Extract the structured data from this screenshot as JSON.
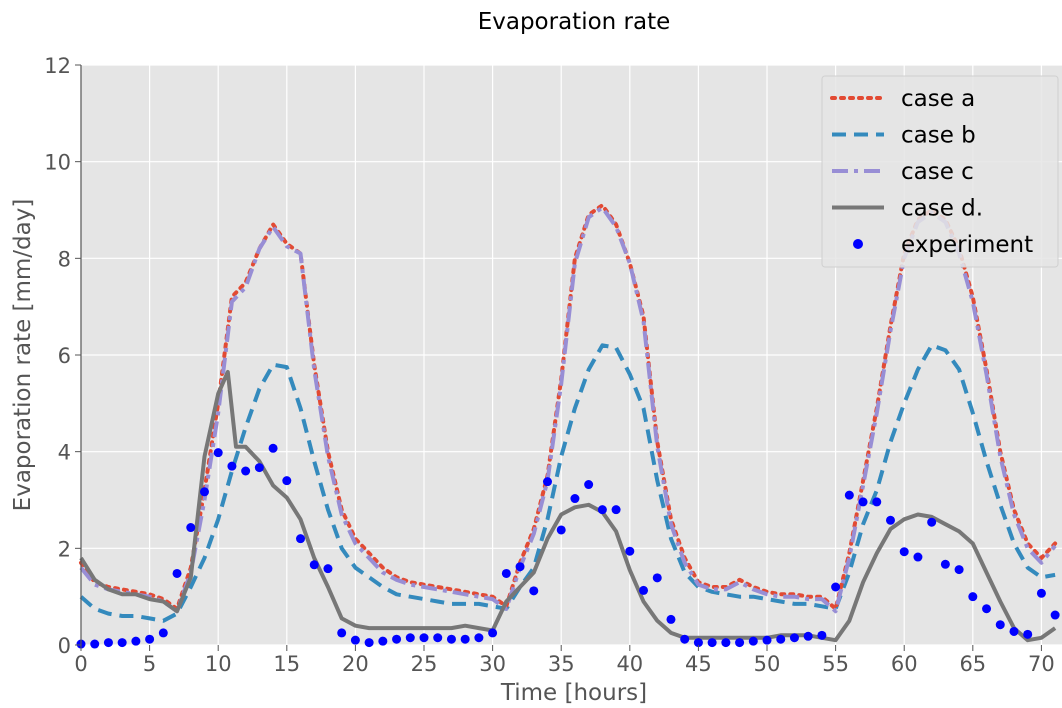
{
  "chart_data": {
    "type": "line",
    "title": "Evaporation rate",
    "xlabel": "Time [hours]",
    "ylabel": "Evaporation rate [mm/day]",
    "xlim": [
      0,
      71.5
    ],
    "ylim": [
      0,
      12
    ],
    "xticks": [
      0,
      5,
      10,
      15,
      20,
      25,
      30,
      35,
      40,
      45,
      50,
      55,
      60,
      65,
      70
    ],
    "yticks": [
      0,
      2,
      4,
      6,
      8,
      10,
      12
    ],
    "grid": true,
    "legend_position": "top-right",
    "series": [
      {
        "name": "case a",
        "style": "dotted",
        "color": "#E24A33",
        "x": [
          0,
          1,
          2,
          3,
          4,
          5,
          6,
          7,
          8,
          9,
          10,
          11,
          12,
          13,
          14,
          15,
          16,
          17,
          18,
          19,
          20,
          21,
          22,
          23,
          24,
          25,
          26,
          27,
          28,
          29,
          30,
          31,
          32,
          33,
          34,
          35,
          36,
          37,
          38,
          39,
          40,
          41,
          42,
          43,
          44,
          45,
          46,
          47,
          48,
          49,
          50,
          51,
          52,
          53,
          54,
          55,
          56,
          57,
          58,
          59,
          60,
          61,
          62,
          63,
          64,
          65,
          66,
          67,
          68,
          69,
          70,
          71
        ],
        "values": [
          1.7,
          1.3,
          1.2,
          1.15,
          1.1,
          1.05,
          0.95,
          0.75,
          1.6,
          3.2,
          5.0,
          7.2,
          7.5,
          8.2,
          8.7,
          8.3,
          8.1,
          5.8,
          4.0,
          2.8,
          2.2,
          1.9,
          1.6,
          1.4,
          1.3,
          1.25,
          1.2,
          1.15,
          1.1,
          1.05,
          1.0,
          0.8,
          1.7,
          2.4,
          3.5,
          5.5,
          8.0,
          8.9,
          9.1,
          8.7,
          7.9,
          6.8,
          4.2,
          2.6,
          1.8,
          1.3,
          1.2,
          1.2,
          1.35,
          1.2,
          1.1,
          1.05,
          1.05,
          1.0,
          1.0,
          0.75,
          1.9,
          3.4,
          4.9,
          6.6,
          8.1,
          8.8,
          9.0,
          8.8,
          8.2,
          7.2,
          5.7,
          4.0,
          2.8,
          2.1,
          1.8,
          2.1
        ]
      },
      {
        "name": "case b",
        "style": "dashed",
        "color": "#348ABD",
        "x": [
          0,
          1,
          2,
          3,
          4,
          5,
          6,
          7,
          8,
          9,
          10,
          11,
          12,
          13,
          14,
          15,
          16,
          17,
          18,
          19,
          20,
          21,
          22,
          23,
          24,
          25,
          26,
          27,
          28,
          29,
          30,
          31,
          32,
          33,
          34,
          35,
          36,
          37,
          38,
          39,
          40,
          41,
          42,
          43,
          44,
          45,
          46,
          47,
          48,
          49,
          50,
          51,
          52,
          53,
          54,
          55,
          56,
          57,
          58,
          59,
          60,
          61,
          62,
          63,
          64,
          65,
          66,
          67,
          68,
          69,
          70,
          71
        ],
        "values": [
          1.0,
          0.75,
          0.65,
          0.6,
          0.6,
          0.55,
          0.5,
          0.65,
          1.2,
          1.8,
          2.6,
          3.6,
          4.5,
          5.3,
          5.8,
          5.75,
          4.9,
          3.8,
          2.8,
          2.0,
          1.6,
          1.4,
          1.2,
          1.05,
          1.0,
          0.95,
          0.9,
          0.85,
          0.85,
          0.85,
          0.8,
          0.75,
          1.2,
          1.6,
          2.6,
          3.9,
          4.9,
          5.7,
          6.2,
          6.15,
          5.6,
          4.9,
          3.4,
          2.2,
          1.5,
          1.2,
          1.1,
          1.05,
          1.0,
          1.0,
          0.95,
          0.9,
          0.85,
          0.85,
          0.8,
          0.75,
          1.5,
          2.5,
          3.2,
          4.2,
          5.0,
          5.7,
          6.2,
          6.1,
          5.7,
          4.8,
          3.8,
          2.9,
          2.1,
          1.6,
          1.4,
          1.45
        ]
      },
      {
        "name": "case c",
        "style": "dashdot",
        "color": "#988ED5",
        "x": [
          0,
          1,
          2,
          3,
          4,
          5,
          6,
          7,
          8,
          9,
          10,
          11,
          12,
          13,
          14,
          15,
          16,
          17,
          18,
          19,
          20,
          21,
          22,
          23,
          24,
          25,
          26,
          27,
          28,
          29,
          30,
          31,
          32,
          33,
          34,
          35,
          36,
          37,
          38,
          39,
          40,
          41,
          42,
          43,
          44,
          45,
          46,
          47,
          48,
          49,
          50,
          51,
          52,
          53,
          54,
          55,
          56,
          57,
          58,
          59,
          60,
          61,
          62,
          63,
          64,
          65,
          66,
          67,
          68,
          69,
          70,
          71
        ],
        "values": [
          1.6,
          1.25,
          1.15,
          1.1,
          1.05,
          1.0,
          0.9,
          0.7,
          1.5,
          3.0,
          4.8,
          7.1,
          7.4,
          8.2,
          8.65,
          8.25,
          8.1,
          5.7,
          3.9,
          2.7,
          2.1,
          1.8,
          1.5,
          1.35,
          1.25,
          1.2,
          1.15,
          1.1,
          1.05,
          1.0,
          0.95,
          0.75,
          1.6,
          2.3,
          3.4,
          5.4,
          7.9,
          8.85,
          9.05,
          8.65,
          7.9,
          6.7,
          4.1,
          2.5,
          1.7,
          1.25,
          1.15,
          1.15,
          1.3,
          1.15,
          1.05,
          1.0,
          1.0,
          0.95,
          0.95,
          0.7,
          1.8,
          3.3,
          4.8,
          6.5,
          8.0,
          8.75,
          8.95,
          8.75,
          8.1,
          7.1,
          5.6,
          3.9,
          2.7,
          2.0,
          1.7,
          2.05
        ]
      },
      {
        "name": "case d.",
        "style": "solid",
        "color": "#777777",
        "x": [
          0,
          1,
          2,
          3,
          4,
          5,
          6,
          7,
          8,
          9,
          10,
          10.7,
          11.3,
          12,
          13,
          14,
          15,
          16,
          17,
          18,
          19,
          20,
          21,
          22,
          23,
          24,
          25,
          26,
          27,
          28,
          29,
          30,
          31,
          32,
          33,
          34,
          35,
          36,
          37,
          38,
          39,
          40,
          41,
          42,
          43,
          44,
          45,
          46,
          47,
          48,
          49,
          50,
          51,
          52,
          53,
          54,
          55,
          56,
          57,
          58,
          59,
          60,
          61,
          62,
          63,
          64,
          65,
          66,
          67,
          68,
          69,
          70,
          71
        ],
        "values": [
          1.8,
          1.35,
          1.15,
          1.05,
          1.05,
          0.95,
          0.9,
          0.7,
          1.4,
          3.9,
          5.2,
          5.65,
          4.1,
          4.1,
          3.8,
          3.3,
          3.05,
          2.6,
          1.8,
          1.2,
          0.55,
          0.4,
          0.35,
          0.35,
          0.35,
          0.35,
          0.35,
          0.35,
          0.35,
          0.4,
          0.35,
          0.3,
          0.9,
          1.2,
          1.5,
          2.2,
          2.7,
          2.85,
          2.9,
          2.75,
          2.35,
          1.55,
          0.9,
          0.5,
          0.25,
          0.15,
          0.15,
          0.15,
          0.15,
          0.15,
          0.15,
          0.15,
          0.2,
          0.2,
          0.2,
          0.15,
          0.1,
          0.5,
          1.3,
          1.9,
          2.4,
          2.6,
          2.7,
          2.65,
          2.5,
          2.35,
          2.1,
          1.5,
          0.9,
          0.35,
          0.1,
          0.15,
          0.35
        ]
      },
      {
        "name": "experiment",
        "style": "markers",
        "color": "#0000FF",
        "x": [
          0,
          1,
          2,
          3,
          4,
          5,
          6,
          7,
          8,
          9,
          10,
          11,
          12,
          13,
          14,
          15,
          16,
          17,
          18,
          19,
          20,
          21,
          22,
          23,
          24,
          25,
          26,
          27,
          28,
          29,
          30,
          31,
          32,
          33,
          34,
          35,
          36,
          37,
          38,
          39,
          40,
          41,
          42,
          43,
          44,
          45,
          46,
          47,
          48,
          49,
          50,
          51,
          52,
          53,
          54,
          55,
          56,
          57,
          58,
          59,
          60,
          61,
          62,
          63,
          64,
          65,
          66,
          67,
          68,
          69,
          70,
          71
        ],
        "values": [
          0.02,
          0.02,
          0.05,
          0.05,
          0.08,
          0.12,
          0.25,
          1.48,
          2.43,
          3.17,
          3.98,
          3.7,
          3.6,
          3.67,
          4.07,
          3.4,
          2.2,
          1.66,
          1.58,
          0.25,
          0.1,
          0.05,
          0.08,
          0.12,
          0.15,
          0.15,
          0.15,
          0.12,
          0.12,
          0.15,
          0.25,
          1.48,
          1.62,
          1.12,
          3.38,
          2.38,
          3.03,
          3.32,
          2.8,
          2.8,
          1.94,
          1.13,
          1.39,
          0.53,
          0.12,
          0.05,
          0.05,
          0.05,
          0.05,
          0.08,
          0.1,
          0.12,
          0.15,
          0.18,
          0.2,
          1.2,
          3.1,
          2.96,
          2.96,
          2.58,
          1.93,
          1.82,
          2.54,
          1.67,
          1.56,
          1.0,
          0.75,
          0.42,
          0.28,
          0.22,
          1.07,
          0.62
        ]
      }
    ]
  }
}
